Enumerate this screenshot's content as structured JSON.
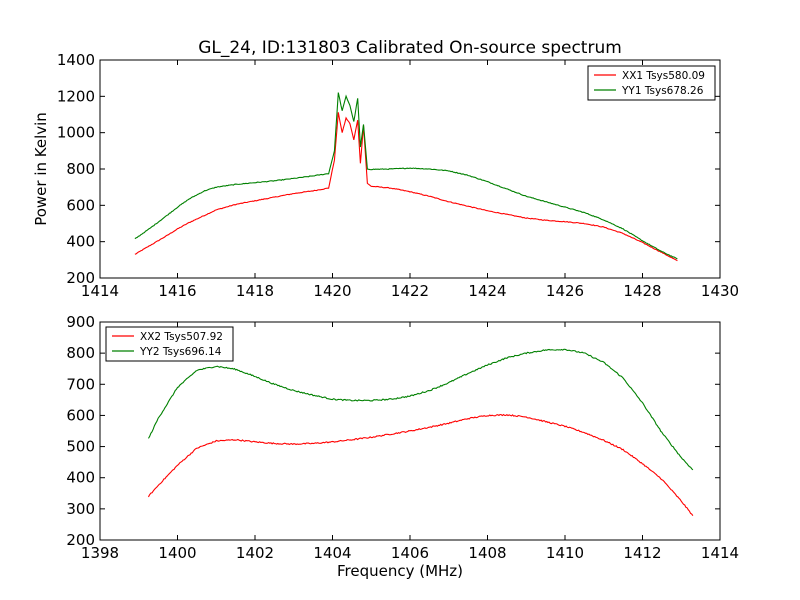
{
  "figure": {
    "title": "GL_24, ID:131803 Calibrated On-source spectrum"
  },
  "chart_data": [
    {
      "type": "line",
      "title": "GL_24, ID:131803 Calibrated On-source spectrum",
      "xlabel": "",
      "ylabel": "Power in Kelvin",
      "xlim": [
        1414,
        1430
      ],
      "ylim": [
        200,
        1400
      ],
      "xticks": [
        "1414",
        "1416",
        "1418",
        "1420",
        "1422",
        "1424",
        "1426",
        "1428",
        "1430"
      ],
      "yticks": [
        "200",
        "400",
        "600",
        "800",
        "1000",
        "1200",
        "1400"
      ],
      "legend_position": "top-right",
      "grid": false,
      "series": [
        {
          "name": "XX1 Tsys580.09",
          "color": "#ff0000",
          "x": [
            1414.9,
            1415.3,
            1415.7,
            1416.0,
            1416.3,
            1416.7,
            1417.0,
            1417.5,
            1418.0,
            1418.5,
            1419.0,
            1419.5,
            1419.9,
            1420.05,
            1420.15,
            1420.25,
            1420.35,
            1420.45,
            1420.55,
            1420.65,
            1420.72,
            1420.8,
            1420.9,
            1421.0,
            1421.5,
            1422.0,
            1422.5,
            1423.0,
            1423.5,
            1424.0,
            1424.5,
            1425.0,
            1425.5,
            1426.0,
            1426.5,
            1427.0,
            1427.5,
            1428.0,
            1428.5,
            1428.9
          ],
          "y": [
            330,
            380,
            430,
            470,
            505,
            545,
            575,
            605,
            625,
            645,
            665,
            680,
            695,
            850,
            1110,
            1000,
            1080,
            1050,
            960,
            1070,
            830,
            1040,
            720,
            705,
            695,
            675,
            650,
            620,
            595,
            570,
            550,
            530,
            518,
            510,
            500,
            480,
            445,
            395,
            340,
            295
          ]
        },
        {
          "name": "YY1 Tsys678.26",
          "color": "#008000",
          "x": [
            1414.9,
            1415.3,
            1415.7,
            1416.0,
            1416.3,
            1416.7,
            1417.0,
            1417.5,
            1418.0,
            1418.5,
            1419.0,
            1419.5,
            1419.9,
            1420.05,
            1420.15,
            1420.25,
            1420.35,
            1420.45,
            1420.55,
            1420.65,
            1420.72,
            1420.8,
            1420.9,
            1421.0,
            1421.5,
            1422.0,
            1422.5,
            1423.0,
            1423.5,
            1424.0,
            1424.5,
            1425.0,
            1425.5,
            1426.0,
            1426.5,
            1427.0,
            1427.5,
            1428.0,
            1428.5,
            1428.9
          ],
          "y": [
            415,
            475,
            540,
            590,
            635,
            680,
            700,
            715,
            725,
            735,
            748,
            762,
            775,
            900,
            1220,
            1120,
            1200,
            1150,
            1060,
            1190,
            920,
            1045,
            800,
            798,
            800,
            805,
            800,
            790,
            765,
            730,
            690,
            650,
            620,
            590,
            560,
            520,
            470,
            405,
            345,
            305
          ]
        }
      ]
    },
    {
      "type": "line",
      "title": "",
      "xlabel": "Frequency (MHz)",
      "ylabel": "",
      "xlim": [
        1398,
        1414
      ],
      "ylim": [
        200,
        900
      ],
      "xticks": [
        "1398",
        "1400",
        "1402",
        "1404",
        "1406",
        "1408",
        "1410",
        "1412",
        "1414"
      ],
      "yticks": [
        "200",
        "300",
        "400",
        "500",
        "600",
        "700",
        "800",
        "900"
      ],
      "legend_position": "top-left",
      "grid": false,
      "series": [
        {
          "name": "XX2 Tsys507.92",
          "color": "#ff0000",
          "x": [
            1399.25,
            1399.5,
            1400.0,
            1400.5,
            1401.0,
            1401.5,
            1402.0,
            1402.5,
            1403.0,
            1403.5,
            1404.0,
            1404.5,
            1405.0,
            1405.5,
            1406.0,
            1406.5,
            1407.0,
            1407.5,
            1408.0,
            1408.5,
            1409.0,
            1409.5,
            1410.0,
            1410.5,
            1411.0,
            1411.5,
            1412.0,
            1412.5,
            1413.0,
            1413.3
          ],
          "y": [
            340,
            375,
            440,
            495,
            518,
            522,
            515,
            510,
            508,
            510,
            515,
            522,
            530,
            540,
            550,
            562,
            575,
            590,
            600,
            602,
            595,
            580,
            565,
            545,
            520,
            490,
            445,
            395,
            325,
            278
          ]
        },
        {
          "name": "YY2 Tsys696.14",
          "color": "#008000",
          "x": [
            1399.25,
            1399.5,
            1400.0,
            1400.5,
            1401.0,
            1401.5,
            1402.0,
            1402.5,
            1403.0,
            1403.5,
            1404.0,
            1404.5,
            1405.0,
            1405.5,
            1406.0,
            1406.5,
            1407.0,
            1407.5,
            1408.0,
            1408.5,
            1409.0,
            1409.5,
            1410.0,
            1410.5,
            1411.0,
            1411.5,
            1412.0,
            1412.5,
            1413.0,
            1413.3
          ],
          "y": [
            525,
            590,
            690,
            745,
            758,
            748,
            725,
            700,
            680,
            665,
            652,
            648,
            648,
            652,
            662,
            680,
            705,
            735,
            762,
            785,
            800,
            810,
            812,
            800,
            770,
            720,
            640,
            545,
            465,
            425
          ]
        }
      ]
    }
  ]
}
